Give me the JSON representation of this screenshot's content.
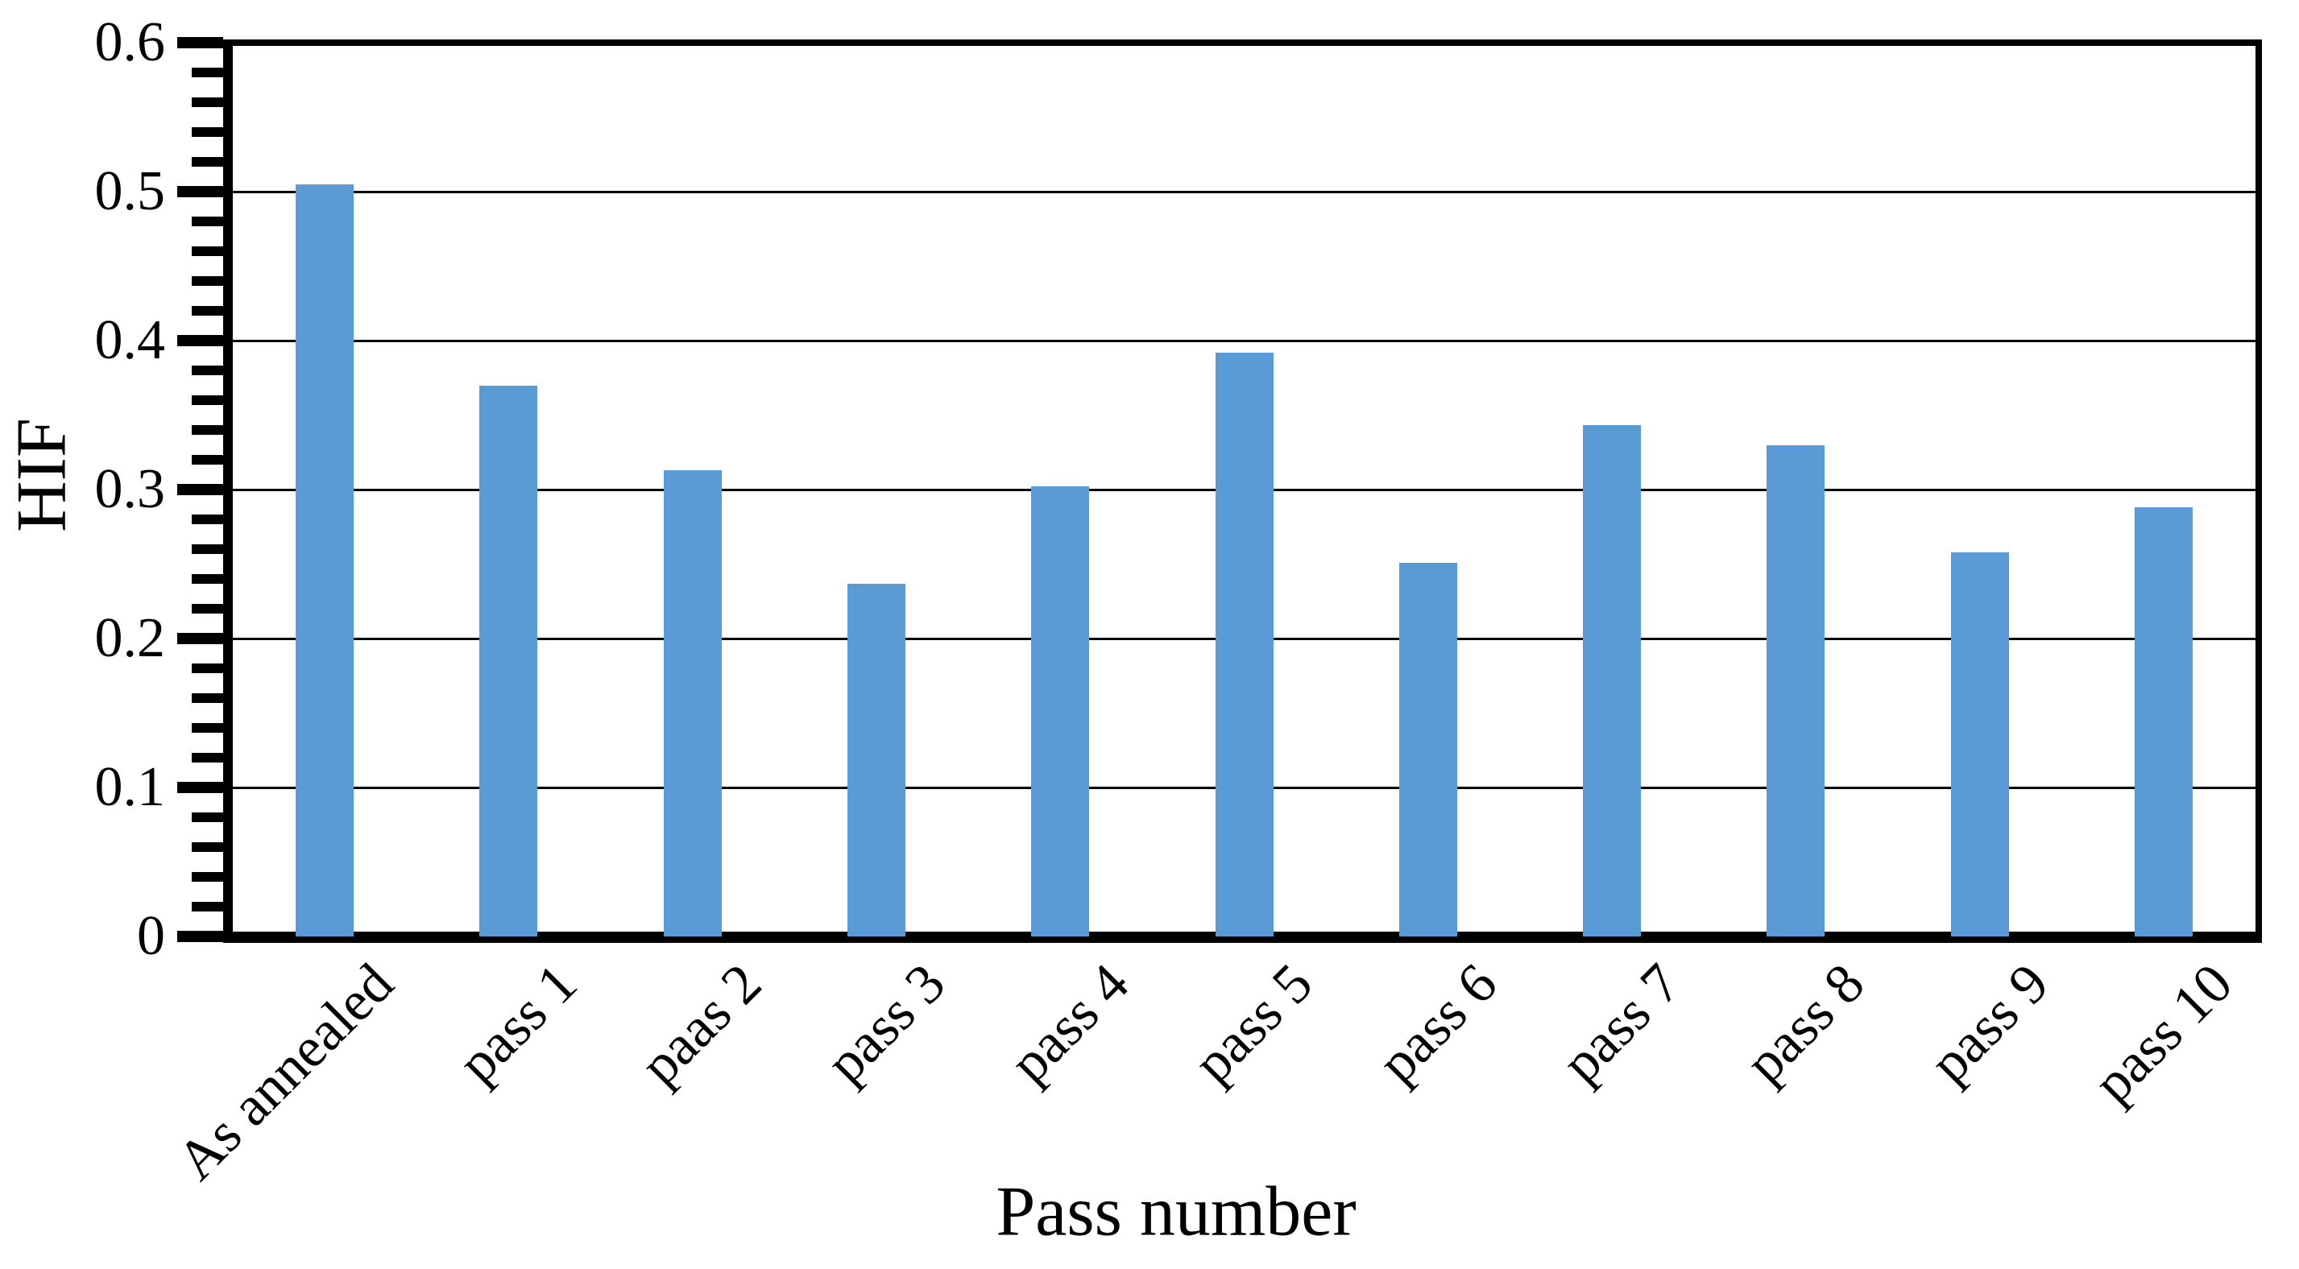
{
  "chart_data": {
    "type": "bar",
    "title": "",
    "xlabel": "Pass number",
    "ylabel": "HIF",
    "categories": [
      "As annealed",
      "pass 1",
      "paas 2",
      "pass 3",
      "pass 4",
      "pass 5",
      "pass 6",
      "pass 7",
      "pass 8",
      "pass 9",
      "pass 10"
    ],
    "values": [
      0.505,
      0.37,
      0.313,
      0.237,
      0.302,
      0.392,
      0.251,
      0.343,
      0.33,
      0.258,
      0.288
    ],
    "ylim": [
      0,
      0.6
    ],
    "ytick_values": [
      0,
      0.1,
      0.2,
      0.3,
      0.4,
      0.5,
      0.6
    ],
    "ytick_labels": [
      "0",
      "0.1",
      "0.2",
      "0.3",
      "0.4",
      "0.5",
      "0.6"
    ],
    "y_minor_unit": 0.02,
    "grid": "horizontal-major",
    "legend": "none",
    "bar_color": "#5B9BD5",
    "axis_color": "#000000",
    "category_label_rotation_deg": -45
  }
}
